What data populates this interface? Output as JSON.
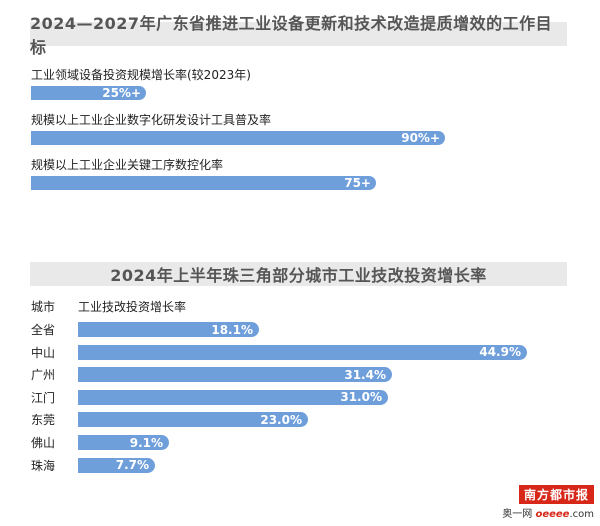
{
  "chart_data": [
    {
      "type": "bar",
      "title": "2024—2027年广东省推进工业设备更新和技术改造提质增效的工作目标",
      "categories": [
        "工业领域设备投资规模增长率(较2023年)",
        "规模以上工业企业数字化研发设计工具普及率",
        "规模以上工业企业关键工序数控化率"
      ],
      "values": [
        25,
        90,
        75
      ],
      "value_labels": [
        "25%+",
        "90%+",
        "75+"
      ],
      "xlim": [
        0,
        100
      ]
    },
    {
      "type": "bar",
      "title": "2024年上半年珠三角部分城市工业技改投资增长率",
      "category_header": "城市",
      "value_header": "工业技改投资增长率",
      "categories": [
        "全省",
        "中山",
        "广州",
        "江门",
        "东莞",
        "佛山",
        "珠海"
      ],
      "values": [
        18.1,
        44.9,
        31.4,
        31.0,
        23.0,
        9.1,
        7.7
      ],
      "value_labels": [
        "18.1%",
        "44.9%",
        "31.4%",
        "31.0%",
        "23.0%",
        "9.1%",
        "7.7%"
      ],
      "xlim": [
        0,
        44.9
      ]
    }
  ],
  "logo": {
    "name": "南方都市报",
    "sub_prefix": "奥一网",
    "sub_brand": "oeeee",
    "sub_suffix": ".com"
  },
  "colors": {
    "bar": "#6f9fdb",
    "band": "#e9e9e9",
    "brand": "#d62718"
  }
}
